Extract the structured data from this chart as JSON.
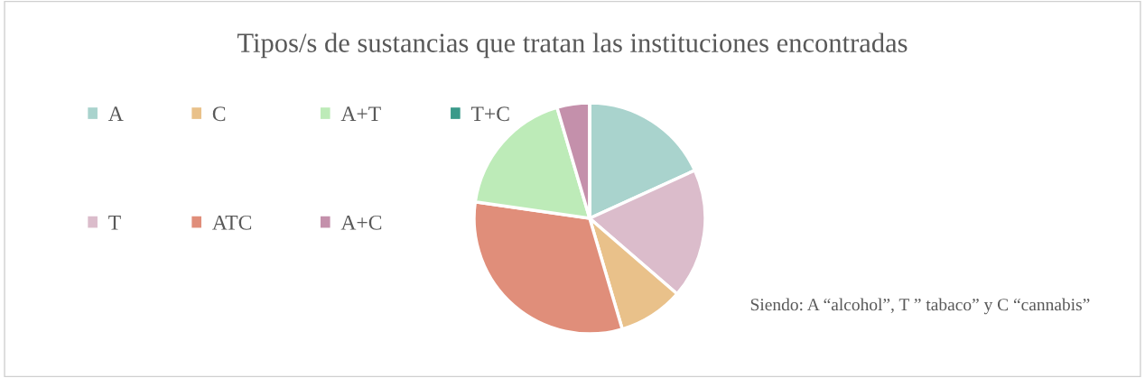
{
  "chart_data": {
    "type": "pie",
    "title": "Tipos/s de sustancias que tratan las instituciones encontradas",
    "categories": [
      "A",
      "T",
      "C",
      "ATC",
      "A+T",
      "A+C",
      "T+C"
    ],
    "values": [
      18.18,
      18.18,
      9.09,
      31.82,
      18.18,
      4.55,
      0
    ],
    "colors": [
      "#a9d3cd",
      "#dbbccb",
      "#e9c18a",
      "#e08e7a",
      "#bdebb8",
      "#c490ab",
      "#3a9a8a"
    ],
    "legend": "left",
    "annotations": [
      "Siendo: A “alcohol”, T ” tabaco” y C “cannabis”"
    ]
  }
}
